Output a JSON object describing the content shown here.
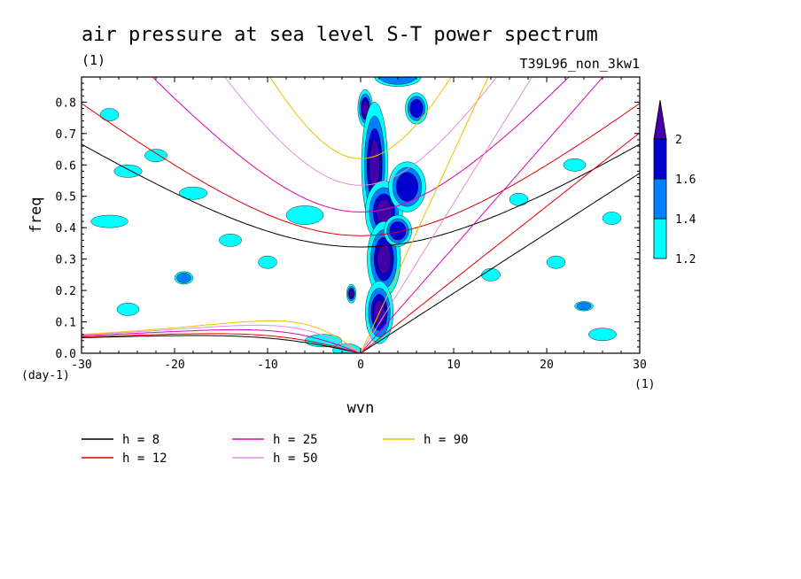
{
  "title": "air pressure at sea level S-T power spectrum",
  "subtitle_left": "(1)",
  "subtitle_right": "T39L96_non_3kw1",
  "x_unit_left": "(day-1)",
  "x_unit_right": "(1)",
  "chart_data": {
    "type": "heatmap",
    "title": "air pressure at sea level S-T power spectrum",
    "xlabel": "wvn",
    "ylabel": "freq",
    "xlim": [
      -30,
      30
    ],
    "ylim": [
      0,
      0.88
    ],
    "x_ticks": [
      -30,
      -20,
      -10,
      0,
      10,
      20,
      30
    ],
    "x_tick_labels": [
      "-30",
      "-20",
      "-10",
      "0",
      "10",
      "20",
      "30"
    ],
    "y_ticks": [
      0,
      0.1,
      0.2,
      0.3,
      0.4,
      0.5,
      0.6,
      0.7,
      0.8
    ],
    "y_tick_labels": [
      "0.0",
      "0.1",
      "0.2",
      "0.3",
      "0.4",
      "0.5",
      "0.6",
      "0.7",
      "0.8"
    ],
    "colorbar": {
      "levels": [
        1.2,
        1.4,
        1.6,
        2
      ],
      "labels": [
        "1.2",
        "1.4",
        "1.6",
        "2"
      ],
      "colors": [
        "#00ffff",
        "#0080ff",
        "#0000d0",
        "#4400a8"
      ]
    },
    "dispersion_curves": [
      {
        "name": "h =  8",
        "h": 8,
        "color": "#000000"
      },
      {
        "name": "h = 12",
        "h": 12,
        "color": "#e00000"
      },
      {
        "name": "h = 25",
        "h": 25,
        "color": "#e000b0"
      },
      {
        "name": "h = 50",
        "h": 50,
        "color": "#e090e0"
      },
      {
        "name": "h = 90",
        "h": 90,
        "color": "#f0c000"
      }
    ],
    "power_blobs": [
      {
        "k": 0.5,
        "f": 0.78,
        "rk": 0.8,
        "rf": 0.06,
        "level": 4
      },
      {
        "k": 1.5,
        "f": 0.6,
        "rk": 1.4,
        "rf": 0.2,
        "level": 4
      },
      {
        "k": 2.5,
        "f": 0.45,
        "rk": 2.0,
        "rf": 0.1,
        "level": 4
      },
      {
        "k": 2.5,
        "f": 0.3,
        "rk": 1.8,
        "rf": 0.12,
        "level": 4
      },
      {
        "k": 2.0,
        "f": 0.13,
        "rk": 1.5,
        "rf": 0.1,
        "level": 4
      },
      {
        "k": 5.0,
        "f": 0.53,
        "rk": 2.0,
        "rf": 0.08,
        "level": 3
      },
      {
        "k": 4.0,
        "f": 0.39,
        "rk": 1.5,
        "rf": 0.05,
        "level": 3
      },
      {
        "k": 6.0,
        "f": 0.78,
        "rk": 1.2,
        "rf": 0.05,
        "level": 3
      },
      {
        "k": 4.0,
        "f": 0.88,
        "rk": 2.5,
        "rf": 0.03,
        "level": 2
      },
      {
        "k": -1.0,
        "f": 0.19,
        "rk": 0.5,
        "rf": 0.03,
        "level": 4
      },
      {
        "k": -1.5,
        "f": 0.01,
        "rk": 1.5,
        "rf": 0.02,
        "level": 1
      },
      {
        "k": -6.0,
        "f": 0.44,
        "rk": 2.0,
        "rf": 0.03,
        "level": 1
      },
      {
        "k": -19.0,
        "f": 0.24,
        "rk": 1.0,
        "rf": 0.02,
        "level": 2
      },
      {
        "k": -25.0,
        "f": 0.58,
        "rk": 1.5,
        "rf": 0.02,
        "level": 1
      },
      {
        "k": -27.0,
        "f": 0.76,
        "rk": 1.0,
        "rf": 0.02,
        "level": 1
      },
      {
        "k": -18.0,
        "f": 0.51,
        "rk": 1.5,
        "rf": 0.02,
        "level": 1
      },
      {
        "k": -22.0,
        "f": 0.63,
        "rk": 1.2,
        "rf": 0.02,
        "level": 1
      },
      {
        "k": -27.0,
        "f": 0.42,
        "rk": 2.0,
        "rf": 0.02,
        "level": 1
      },
      {
        "k": -14.0,
        "f": 0.36,
        "rk": 1.2,
        "rf": 0.02,
        "level": 1
      },
      {
        "k": -10.0,
        "f": 0.29,
        "rk": 1.0,
        "rf": 0.02,
        "level": 1
      },
      {
        "k": -4.0,
        "f": 0.04,
        "rk": 2.0,
        "rf": 0.02,
        "level": 1
      },
      {
        "k": 17.0,
        "f": 0.49,
        "rk": 1.0,
        "rf": 0.02,
        "level": 1
      },
      {
        "k": 23.0,
        "f": 0.6,
        "rk": 1.2,
        "rf": 0.02,
        "level": 1
      },
      {
        "k": 24.0,
        "f": 0.15,
        "rk": 1.0,
        "rf": 0.015,
        "level": 2
      },
      {
        "k": 26.0,
        "f": 0.06,
        "rk": 1.5,
        "rf": 0.02,
        "level": 1
      },
      {
        "k": 21.0,
        "f": 0.29,
        "rk": 1.0,
        "rf": 0.02,
        "level": 1
      },
      {
        "k": 14.0,
        "f": 0.25,
        "rk": 1.0,
        "rf": 0.02,
        "level": 1
      },
      {
        "k": 27.0,
        "f": 0.43,
        "rk": 1.0,
        "rf": 0.02,
        "level": 1
      },
      {
        "k": -25.0,
        "f": 0.14,
        "rk": 1.2,
        "rf": 0.02,
        "level": 1
      }
    ]
  }
}
